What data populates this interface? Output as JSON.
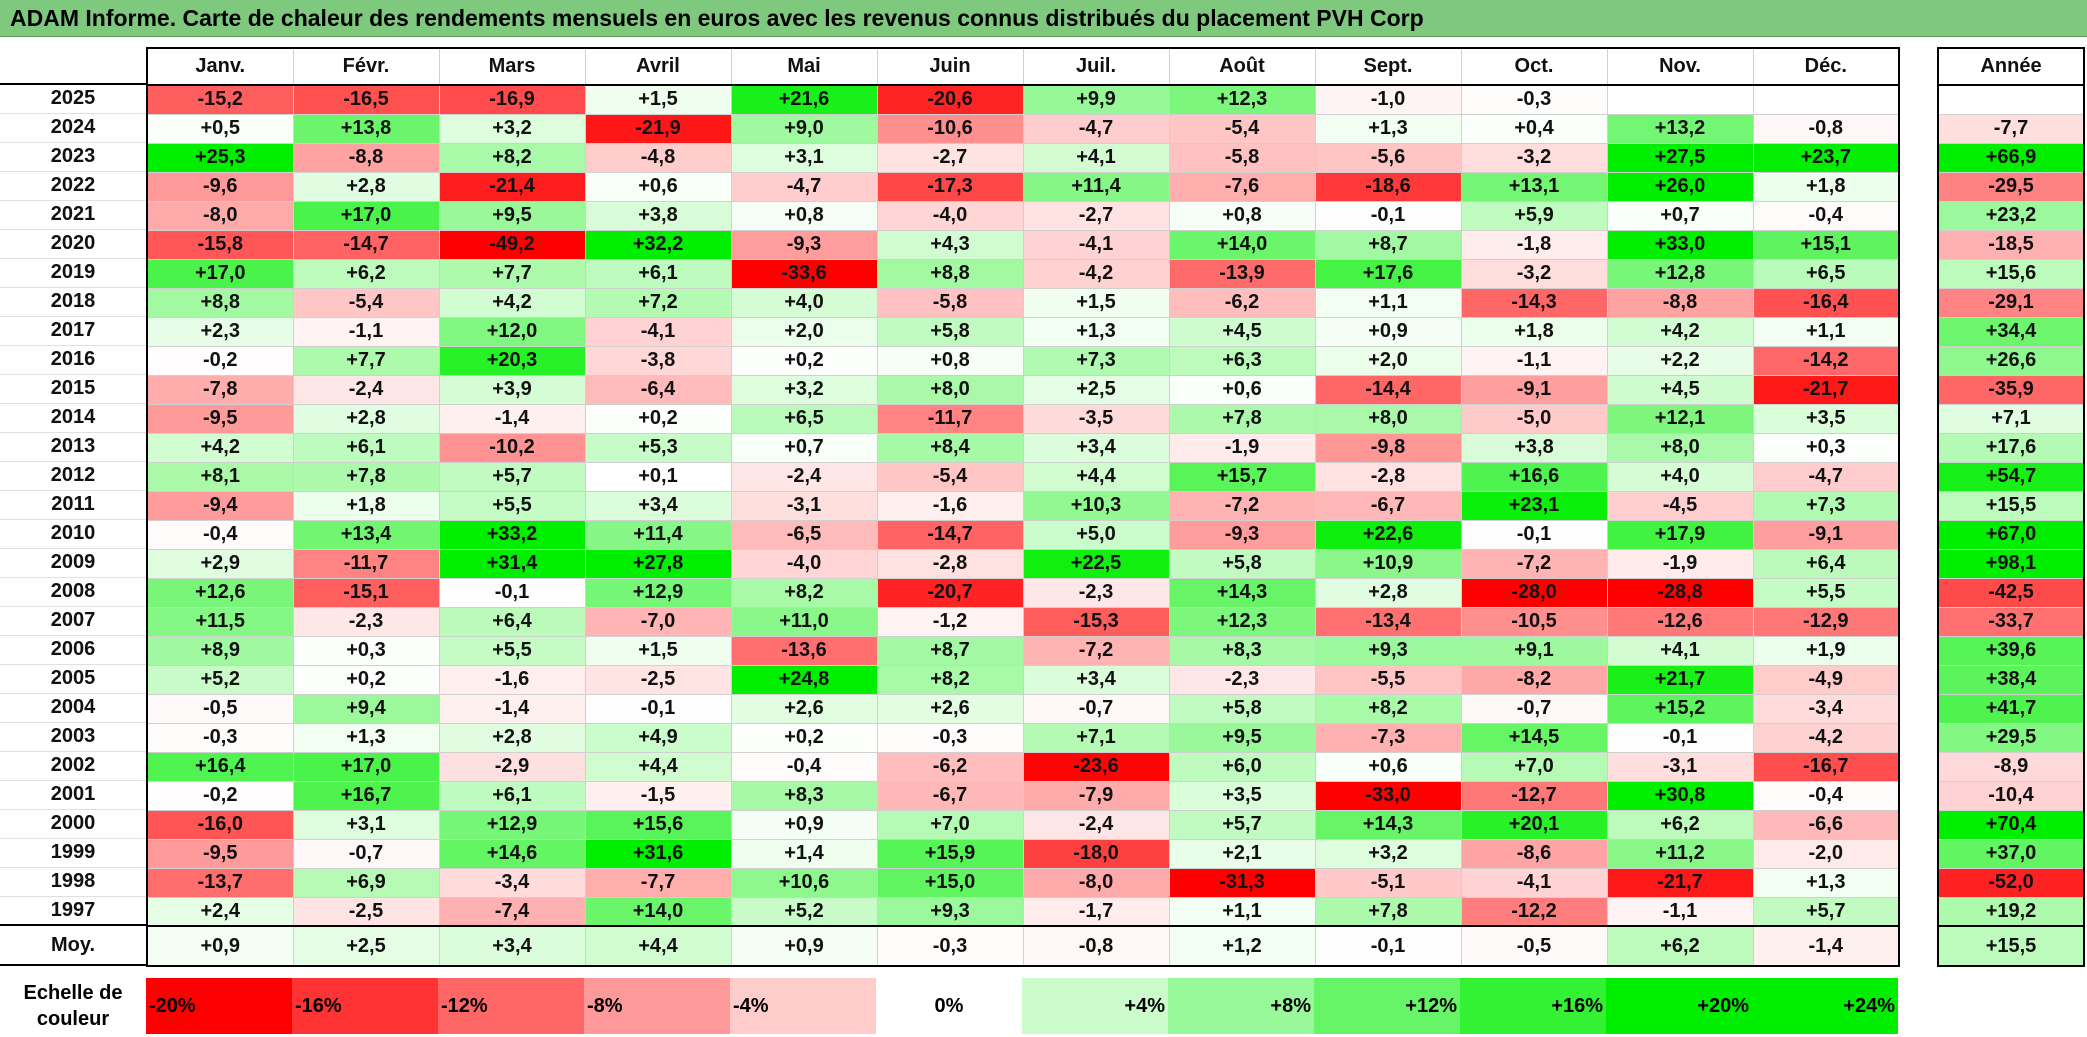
{
  "title": "ADAM Informe. Carte de chaleur des rendements mensuels en euros avec les revenus connus distribués du placement PVH Corp",
  "chart_data": {
    "type": "heatmap",
    "months": [
      "Janv.",
      "Févr.",
      "Mars",
      "Avril",
      "Mai",
      "Juin",
      "Juil.",
      "Août",
      "Sept.",
      "Oct.",
      "Nov.",
      "Déc."
    ],
    "annual_header": "Année",
    "avg_label": "Moy.",
    "scale_label": "Echelle de couleur",
    "rows": [
      {
        "year": "2025",
        "values": [
          -15.2,
          -16.5,
          -16.9,
          1.5,
          21.6,
          -20.6,
          9.9,
          12.3,
          -1.0,
          -0.3,
          null,
          null
        ],
        "annual": null
      },
      {
        "year": "2024",
        "values": [
          0.5,
          13.8,
          3.2,
          -21.9,
          9.0,
          -10.6,
          -4.7,
          -5.4,
          1.3,
          0.4,
          13.2,
          -0.8
        ],
        "annual": -7.7
      },
      {
        "year": "2023",
        "values": [
          25.3,
          -8.8,
          8.2,
          -4.8,
          3.1,
          -2.7,
          4.1,
          -5.8,
          -5.6,
          -3.2,
          27.5,
          23.7
        ],
        "annual": 66.9
      },
      {
        "year": "2022",
        "values": [
          -9.6,
          2.8,
          -21.4,
          0.6,
          -4.7,
          -17.3,
          11.4,
          -7.6,
          -18.6,
          13.1,
          26.0,
          1.8
        ],
        "annual": -29.5
      },
      {
        "year": "2021",
        "values": [
          -8.0,
          17.0,
          9.5,
          3.8,
          0.8,
          -4.0,
          -2.7,
          0.8,
          -0.1,
          5.9,
          0.7,
          -0.4
        ],
        "annual": 23.2
      },
      {
        "year": "2020",
        "values": [
          -15.8,
          -14.7,
          -49.2,
          32.2,
          -9.3,
          4.3,
          -4.1,
          14.0,
          8.7,
          -1.8,
          33.0,
          15.1
        ],
        "annual": -18.5
      },
      {
        "year": "2019",
        "values": [
          17.0,
          6.2,
          7.7,
          6.1,
          -33.6,
          8.8,
          -4.2,
          -13.9,
          17.6,
          -3.2,
          12.8,
          6.5
        ],
        "annual": 15.6
      },
      {
        "year": "2018",
        "values": [
          8.8,
          -5.4,
          4.2,
          7.2,
          4.0,
          -5.8,
          1.5,
          -6.2,
          1.1,
          -14.3,
          -8.8,
          -16.4
        ],
        "annual": -29.1
      },
      {
        "year": "2017",
        "values": [
          2.3,
          -1.1,
          12.0,
          -4.1,
          2.0,
          5.8,
          1.3,
          4.5,
          0.9,
          1.8,
          4.2,
          1.1
        ],
        "annual": 34.4
      },
      {
        "year": "2016",
        "values": [
          -0.2,
          7.7,
          20.3,
          -3.8,
          0.2,
          0.8,
          7.3,
          6.3,
          2.0,
          -1.1,
          2.2,
          -14.2
        ],
        "annual": 26.6
      },
      {
        "year": "2015",
        "values": [
          -7.8,
          -2.4,
          3.9,
          -6.4,
          3.2,
          8.0,
          2.5,
          0.6,
          -14.4,
          -9.1,
          4.5,
          -21.7
        ],
        "annual": -35.9
      },
      {
        "year": "2014",
        "values": [
          -9.5,
          2.8,
          -1.4,
          0.2,
          6.5,
          -11.7,
          -3.5,
          7.8,
          8.0,
          -5.0,
          12.1,
          3.5
        ],
        "annual": 7.1
      },
      {
        "year": "2013",
        "values": [
          4.2,
          6.1,
          -10.2,
          5.3,
          0.7,
          8.4,
          3.4,
          -1.9,
          -9.8,
          3.8,
          8.0,
          0.3
        ],
        "annual": 17.6
      },
      {
        "year": "2012",
        "values": [
          8.1,
          7.8,
          5.7,
          0.1,
          -2.4,
          -5.4,
          4.4,
          15.7,
          -2.8,
          16.6,
          4.0,
          -4.7
        ],
        "annual": 54.7
      },
      {
        "year": "2011",
        "values": [
          -9.4,
          1.8,
          5.5,
          3.4,
          -3.1,
          -1.6,
          10.3,
          -7.2,
          -6.7,
          23.1,
          -4.5,
          7.3
        ],
        "annual": 15.5
      },
      {
        "year": "2010",
        "values": [
          -0.4,
          13.4,
          33.2,
          11.4,
          -6.5,
          -14.7,
          5.0,
          -9.3,
          22.6,
          -0.1,
          17.9,
          -9.1
        ],
        "annual": 67.0
      },
      {
        "year": "2009",
        "values": [
          2.9,
          -11.7,
          31.4,
          27.8,
          -4.0,
          -2.8,
          22.5,
          5.8,
          10.9,
          -7.2,
          -1.9,
          6.4
        ],
        "annual": 98.1
      },
      {
        "year": "2008",
        "values": [
          12.6,
          -15.1,
          -0.1,
          12.9,
          8.2,
          -20.7,
          -2.3,
          14.3,
          2.8,
          -28.0,
          -28.8,
          5.5
        ],
        "annual": -42.5
      },
      {
        "year": "2007",
        "values": [
          11.5,
          -2.3,
          6.4,
          -7.0,
          11.0,
          -1.2,
          -15.3,
          12.3,
          -13.4,
          -10.5,
          -12.6,
          -12.9
        ],
        "annual": -33.7
      },
      {
        "year": "2006",
        "values": [
          8.9,
          0.3,
          5.5,
          1.5,
          -13.6,
          8.7,
          -7.2,
          8.3,
          9.3,
          9.1,
          4.1,
          1.9
        ],
        "annual": 39.6
      },
      {
        "year": "2005",
        "values": [
          5.2,
          0.2,
          -1.6,
          -2.5,
          24.8,
          8.2,
          3.4,
          -2.3,
          -5.5,
          -8.2,
          21.7,
          -4.9
        ],
        "annual": 38.4
      },
      {
        "year": "2004",
        "values": [
          -0.5,
          9.4,
          -1.4,
          -0.1,
          2.6,
          2.6,
          -0.7,
          5.8,
          8.2,
          -0.7,
          15.2,
          -3.4
        ],
        "annual": 41.7
      },
      {
        "year": "2003",
        "values": [
          -0.3,
          1.3,
          2.8,
          4.9,
          0.2,
          -0.3,
          7.1,
          9.5,
          -7.3,
          14.5,
          -0.1,
          -4.2
        ],
        "annual": 29.5
      },
      {
        "year": "2002",
        "values": [
          16.4,
          17.0,
          -2.9,
          4.4,
          -0.4,
          -6.2,
          -23.6,
          6.0,
          0.6,
          7.0,
          -3.1,
          -16.7
        ],
        "annual": -8.9
      },
      {
        "year": "2001",
        "values": [
          -0.2,
          16.7,
          6.1,
          -1.5,
          8.3,
          -6.7,
          -7.9,
          3.5,
          -33.0,
          -12.7,
          30.8,
          -0.4
        ],
        "annual": -10.4
      },
      {
        "year": "2000",
        "values": [
          -16.0,
          3.1,
          12.9,
          15.6,
          0.9,
          7.0,
          -2.4,
          5.7,
          14.3,
          20.1,
          6.2,
          -6.6
        ],
        "annual": 70.4
      },
      {
        "year": "1999",
        "values": [
          -9.5,
          -0.7,
          14.6,
          31.6,
          1.4,
          15.9,
          -18.0,
          2.1,
          3.2,
          -8.6,
          11.2,
          -2.0
        ],
        "annual": 37.0
      },
      {
        "year": "1998",
        "values": [
          -13.7,
          6.9,
          -3.4,
          -7.7,
          10.6,
          15.0,
          -8.0,
          -31.3,
          -5.1,
          -4.1,
          -21.7,
          1.3
        ],
        "annual": -52.0
      },
      {
        "year": "1997",
        "values": [
          2.4,
          -2.5,
          -7.4,
          14.0,
          5.2,
          9.3,
          -1.7,
          1.1,
          7.8,
          -12.2,
          -1.1,
          5.7
        ],
        "annual": 19.2
      }
    ],
    "averages": [
      0.9,
      2.5,
      3.4,
      4.4,
      0.9,
      -0.3,
      -0.8,
      1.2,
      -0.1,
      -0.5,
      6.2,
      -1.4
    ],
    "average_annual": 15.5,
    "scale": [
      "-20%",
      "-16%",
      "-12%",
      "-8%",
      "-4%",
      "0%",
      "+4%",
      "+8%",
      "+12%",
      "+16%",
      "+20%",
      "+24%"
    ],
    "colors": {
      "neg_max": "#ff0000",
      "pos_max": "#00ee00",
      "neutral": "#ffffff",
      "title_bg": "#7fc97f"
    }
  }
}
